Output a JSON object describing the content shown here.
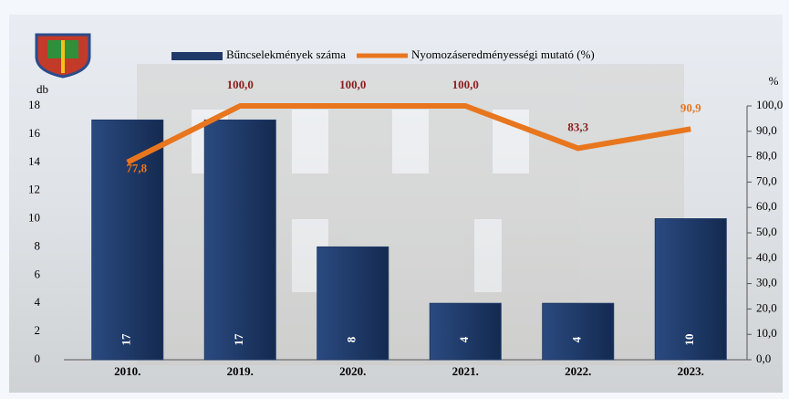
{
  "chart_data": {
    "type": "bar",
    "categories": [
      "2010.",
      "2019.",
      "2020.",
      "2021.",
      "2022.",
      "2023."
    ],
    "series": [
      {
        "name": "Bűncselekmények száma",
        "type": "bar",
        "color": "#1f3a68",
        "values": [
          17,
          17,
          8,
          4,
          4,
          10
        ]
      },
      {
        "name": "Nyomozáseredményességi mutató (%)",
        "type": "line",
        "axis": "y2",
        "color": "#e8761e",
        "label_color": "#8b1e1e",
        "values": [
          77.8,
          100,
          100,
          100,
          83.3,
          90.9
        ],
        "value_labels": [
          "77,8",
          "100,0",
          "100,0",
          "100,0",
          "83,3",
          "90,9"
        ]
      }
    ],
    "ylabel": "db",
    "y2label": "%",
    "ylim": [
      0,
      18
    ],
    "yticks": [
      0,
      2,
      4,
      6,
      8,
      10,
      12,
      14,
      16,
      18
    ],
    "y2lim": [
      0,
      100
    ],
    "y2ticks": [
      {
        "value": 0,
        "label": "0,0"
      },
      {
        "value": 10,
        "label": "10,0"
      },
      {
        "value": 20,
        "label": "20,0"
      },
      {
        "value": 30,
        "label": "30,0"
      },
      {
        "value": 40,
        "label": "40,0"
      },
      {
        "value": 50,
        "label": "50,0"
      },
      {
        "value": 60,
        "label": "60,0"
      },
      {
        "value": 70,
        "label": "70,0"
      },
      {
        "value": 80,
        "label": "80,0"
      },
      {
        "value": 90,
        "label": "90,0"
      },
      {
        "value": 100,
        "label": "100,0"
      }
    ],
    "legend": "top"
  }
}
